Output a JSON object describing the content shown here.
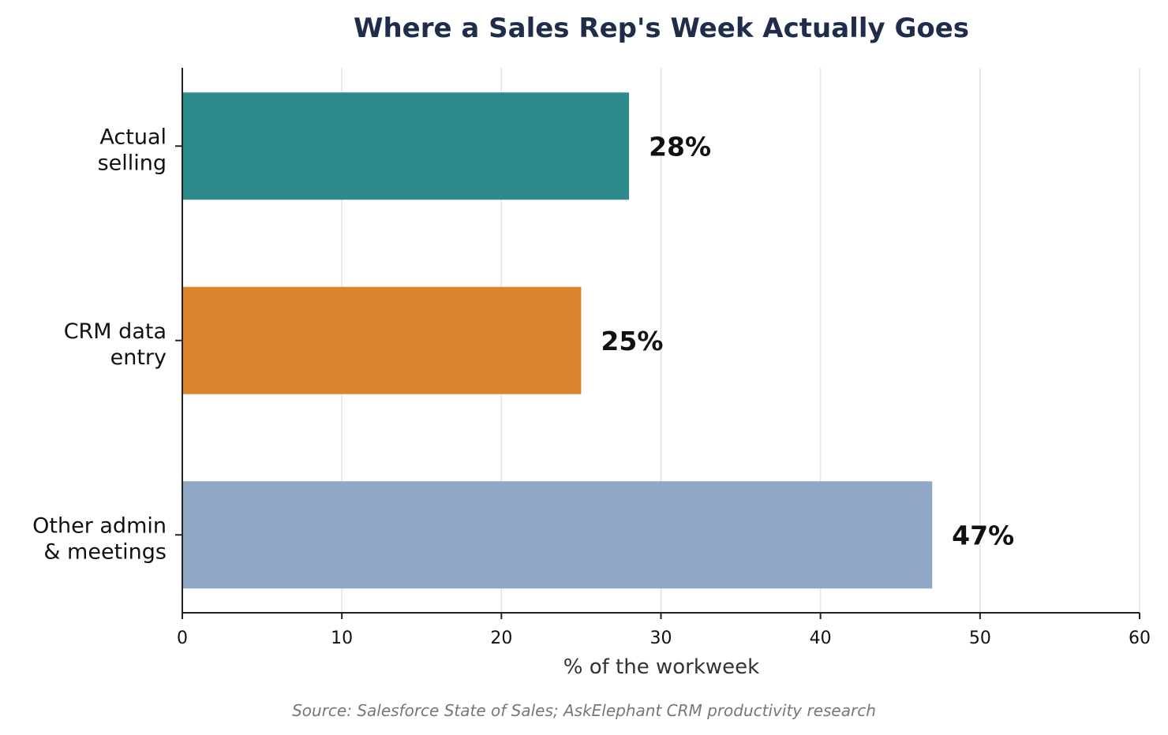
{
  "chart_data": {
    "type": "bar",
    "orientation": "horizontal",
    "title": "Where a Sales Rep's Week Actually Goes",
    "categories": [
      [
        "Actual",
        "selling"
      ],
      [
        "CRM data",
        "entry"
      ],
      [
        "Other admin",
        "& meetings"
      ]
    ],
    "values": [
      28,
      25,
      47
    ],
    "value_labels": [
      "28%",
      "25%",
      "47%"
    ],
    "colors": [
      "#2e8b8b",
      "#db842e",
      "#90a7c5"
    ],
    "xlabel": "% of the workweek",
    "ylabel": "",
    "xlim": [
      0,
      60
    ],
    "xticks": [
      0,
      10,
      20,
      30,
      40,
      50,
      60
    ],
    "grid": "vertical",
    "title_color": "#1f2d4a",
    "source": "Source: Salesforce State of Sales; AskElephant CRM productivity research"
  }
}
